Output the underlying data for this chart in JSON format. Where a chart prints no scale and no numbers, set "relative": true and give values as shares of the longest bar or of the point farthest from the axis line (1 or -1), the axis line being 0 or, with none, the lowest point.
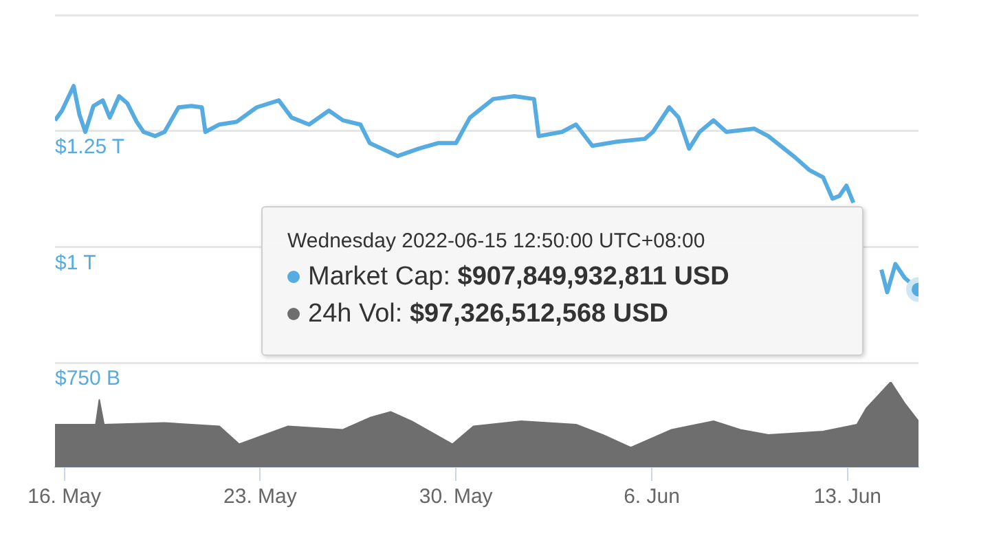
{
  "chart_data": [
    {
      "type": "line",
      "tick_labels": "y",
      "grid": "y",
      "xlim": [
        "2022-05-15T16:00",
        "2022-06-15T12:50"
      ],
      "ylim": [
        750000000000,
        1500000000000
      ],
      "yticks": [
        {
          "value": 750000000000,
          "label": "$750 B"
        },
        {
          "value": 1000000000000,
          "label": "$1 T"
        },
        {
          "value": 1250000000000,
          "label": "$1.25 T"
        },
        {
          "value": 1500000000000,
          "label": null
        }
      ],
      "annotations": [
        "Wednesday 2022-06-15 12:50:00 UTC+08:00",
        "Market Cap: $907,849,932,811 USD"
      ],
      "series": [
        {
          "color": "#56ace0",
          "x": [
            "2022-05-15T16:00",
            "2022-05-15T22:00",
            "2022-05-16T08:00",
            "2022-05-16T13:00",
            "2022-05-16T18:00",
            "2022-05-17T01:00",
            "2022-05-17T09:00",
            "2022-05-17T15:00",
            "2022-05-17T23:00",
            "2022-05-18T06:00",
            "2022-05-18T14:00",
            "2022-05-18T20:00",
            "2022-05-19T06:00",
            "2022-05-19T14:00",
            "2022-05-20T02:00",
            "2022-05-20T13:00",
            "2022-05-20T22:00",
            "2022-05-21T01:00",
            "2022-05-21T13:00",
            "2022-05-22T04:00",
            "2022-05-22T21:00",
            "2022-05-23T16:00",
            "2022-05-24T03:00",
            "2022-05-24T18:00",
            "2022-05-25T11:00",
            "2022-05-25T23:00",
            "2022-05-26T14:00",
            "2022-05-26T22:00",
            "2022-05-27T22:00",
            "2022-05-28T16:00",
            "2022-05-29T09:00",
            "2022-05-30T00:00",
            "2022-05-30T12:00",
            "2022-05-31T08:00",
            "2022-06-01T02:00",
            "2022-06-01T19:00",
            "2022-06-01T23:00",
            "2022-06-02T19:00",
            "2022-06-03T07:00",
            "2022-06-03T21:00",
            "2022-06-04T18:00",
            "2022-06-05T18:00",
            "2022-06-06T01:00",
            "2022-06-06T15:00",
            "2022-06-06T23:00",
            "2022-06-07T08:00",
            "2022-06-07T17:00",
            "2022-06-08T05:00",
            "2022-06-08T16:00",
            "2022-06-09T16:00",
            "2022-06-10T04:00",
            "2022-06-10T19:00",
            "2022-06-11T03:00",
            "2022-06-11T15:00",
            "2022-06-12T03:00",
            "2022-06-12T11:00",
            "2022-06-12T17:00",
            "2022-06-12T23:00",
            "2022-06-13T05:00",
            "2022-06-13T14:00",
            "2022-06-14T05:00",
            "2022-06-14T10:00",
            "2022-06-14T17:00",
            "2022-06-15T01:00",
            "2022-06-15T12:50"
          ],
          "values": [
            1273000000000,
            1294000000000,
            1347000000000,
            1285000000000,
            1248000000000,
            1304000000000,
            1316000000000,
            1279000000000,
            1325000000000,
            1310000000000,
            1270000000000,
            1248000000000,
            1239000000000,
            1248000000000,
            1301000000000,
            1304000000000,
            1301000000000,
            1248000000000,
            1264000000000,
            1270000000000,
            1301000000000,
            1316000000000,
            1279000000000,
            1264000000000,
            1294000000000,
            1273000000000,
            1264000000000,
            1224000000000,
            1196000000000,
            1212000000000,
            1224000000000,
            1224000000000,
            1279000000000,
            1319000000000,
            1325000000000,
            1319000000000,
            1239000000000,
            1248000000000,
            1264000000000,
            1218000000000,
            1227000000000,
            1233000000000,
            1248000000000,
            1301000000000,
            1279000000000,
            1212000000000,
            1248000000000,
            1273000000000,
            1248000000000,
            1255000000000,
            1239000000000,
            1209000000000,
            1193000000000,
            1166000000000,
            1150000000000,
            1104000000000,
            1110000000000,
            1132000000000,
            1095000000000,
            null,
            951000000000,
            902000000000,
            963000000000,
            933000000000,
            908000000000
          ]
        }
      ]
    },
    {
      "type": "area",
      "relative": true,
      "grid": false,
      "xlim": [
        "2022-05-15T16:00",
        "2022-06-15T12:50"
      ],
      "xticks": [
        {
          "value": "2022-05-16",
          "label": "16. May"
        },
        {
          "value": "2022-05-23",
          "label": "23. May"
        },
        {
          "value": "2022-05-30",
          "label": "30. May"
        },
        {
          "value": "2022-06-06",
          "label": "6. Jun"
        },
        {
          "value": "2022-06-13",
          "label": "13. Jun"
        }
      ],
      "annotations": [
        "24h Vol: $97,326,512,568 USD"
      ],
      "series": [
        {
          "color": "#6e6e6e",
          "x": [
            "2022-05-15T16:00",
            "2022-05-17T03:00",
            "2022-05-17T06:00",
            "2022-05-17T10:00",
            "2022-05-19T14:00",
            "2022-05-21T13:00",
            "2022-05-22T06:00",
            "2022-05-24T00:00",
            "2022-05-25T23:00",
            "2022-05-26T22:00",
            "2022-05-27T16:00",
            "2022-05-28T10:00",
            "2022-05-29T21:00",
            "2022-05-30T15:00",
            "2022-06-01T08:00",
            "2022-06-03T07:00",
            "2022-06-04T06:00",
            "2022-06-05T06:00",
            "2022-06-06T17:00",
            "2022-06-08T05:00",
            "2022-06-09T04:00",
            "2022-06-10T04:00",
            "2022-06-12T03:00",
            "2022-06-13T08:00",
            "2022-06-13T16:00",
            "2022-06-14T13:00",
            "2022-06-15T01:00",
            "2022-06-15T12:50"
          ],
          "values": [
            0.5,
            0.5,
            0.79,
            0.5,
            0.52,
            0.48,
            0.27,
            0.48,
            0.44,
            0.58,
            0.65,
            0.54,
            0.27,
            0.48,
            0.54,
            0.5,
            0.38,
            0.23,
            0.44,
            0.54,
            0.44,
            0.38,
            0.42,
            0.5,
            0.69,
            1,
            0.75,
            0.54
          ]
        }
      ]
    }
  ]
}
